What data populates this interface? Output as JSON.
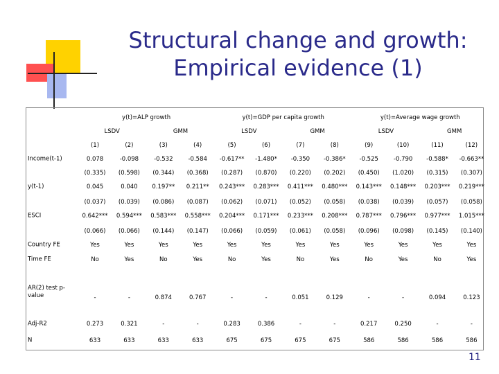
{
  "header": {
    "title_line1": "Structural change and growth:",
    "title_line2": "Empirical evidence (1)"
  },
  "table": {
    "groups": [
      "y(t)=ALP growth",
      "y(t)=GDP per capita growth",
      "y(t)=Average wage growth"
    ],
    "methods": [
      "LSDV",
      "GMM",
      "LSDV",
      "GMM",
      "LSDV",
      "GMM"
    ],
    "columns": [
      "(1)",
      "(2)",
      "(3)",
      "(4)",
      "(5)",
      "(6)",
      "(7)",
      "(8)",
      "(9)",
      "(10)",
      "(11)",
      "(12)"
    ],
    "rows": [
      {
        "label": "Income(t-1)",
        "values": [
          "0.078",
          "-0.098",
          "-0.532",
          "-0.584",
          "-0.617**",
          "-1.480*",
          "-0.350",
          "-0.386*",
          "-0.525",
          "-0.790",
          "-0.588*",
          "-0.663**"
        ],
        "se": [
          "(0.335)",
          "(0.598)",
          "(0.344)",
          "(0.368)",
          "(0.287)",
          "(0.870)",
          "(0.220)",
          "(0.202)",
          "(0.450)",
          "(1.020)",
          "(0.315)",
          "(0.307)"
        ]
      },
      {
        "label": "y(t-1)",
        "values": [
          "0.045",
          "0.040",
          "0.197**",
          "0.211**",
          "0.243***",
          "0.283***",
          "0.411***",
          "0.480***",
          "0.143***",
          "0.148***",
          "0.203***",
          "0.219***"
        ],
        "se": [
          "(0.037)",
          "(0.039)",
          "(0.086)",
          "(0.087)",
          "(0.062)",
          "(0.071)",
          "(0.052)",
          "(0.058)",
          "(0.038)",
          "(0.039)",
          "(0.057)",
          "(0.058)"
        ]
      },
      {
        "label": "ESCI",
        "values": [
          "0.642***",
          "0.594***",
          "0.583***",
          "0.558***",
          "0.204***",
          "0.171***",
          "0.233***",
          "0.208***",
          "0.787***",
          "0.796***",
          "0.977***",
          "1.015***"
        ],
        "se": [
          "(0.066)",
          "(0.066)",
          "(0.144)",
          "(0.147)",
          "(0.066)",
          "(0.059)",
          "(0.061)",
          "(0.058)",
          "(0.096)",
          "(0.098)",
          "(0.145)",
          "(0.140)"
        ]
      },
      {
        "label": "Country FE",
        "values": [
          "Yes",
          "Yes",
          "Yes",
          "Yes",
          "Yes",
          "Yes",
          "Yes",
          "Yes",
          "Yes",
          "Yes",
          "Yes",
          "Yes"
        ]
      },
      {
        "label": "Time FE",
        "values": [
          "No",
          "Yes",
          "No",
          "Yes",
          "No",
          "Yes",
          "No",
          "Yes",
          "No",
          "Yes",
          "No",
          "Yes"
        ]
      },
      {
        "label": "AR(2) test p-value",
        "values": [
          "-",
          "-",
          "0.874",
          "0.767",
          "-",
          "-",
          "0.051",
          "0.129",
          "-",
          "-",
          "0.094",
          "0.123"
        ]
      },
      {
        "label": "Adj-R2",
        "values": [
          "0.273",
          "0.321",
          "-",
          "-",
          "0.283",
          "0.386",
          "-",
          "-",
          "0.217",
          "0.250",
          "-",
          "-"
        ]
      },
      {
        "label": "N",
        "values": [
          "633",
          "633",
          "633",
          "633",
          "675",
          "675",
          "675",
          "675",
          "586",
          "586",
          "586",
          "586"
        ]
      }
    ]
  },
  "footer": {
    "page": "11"
  }
}
